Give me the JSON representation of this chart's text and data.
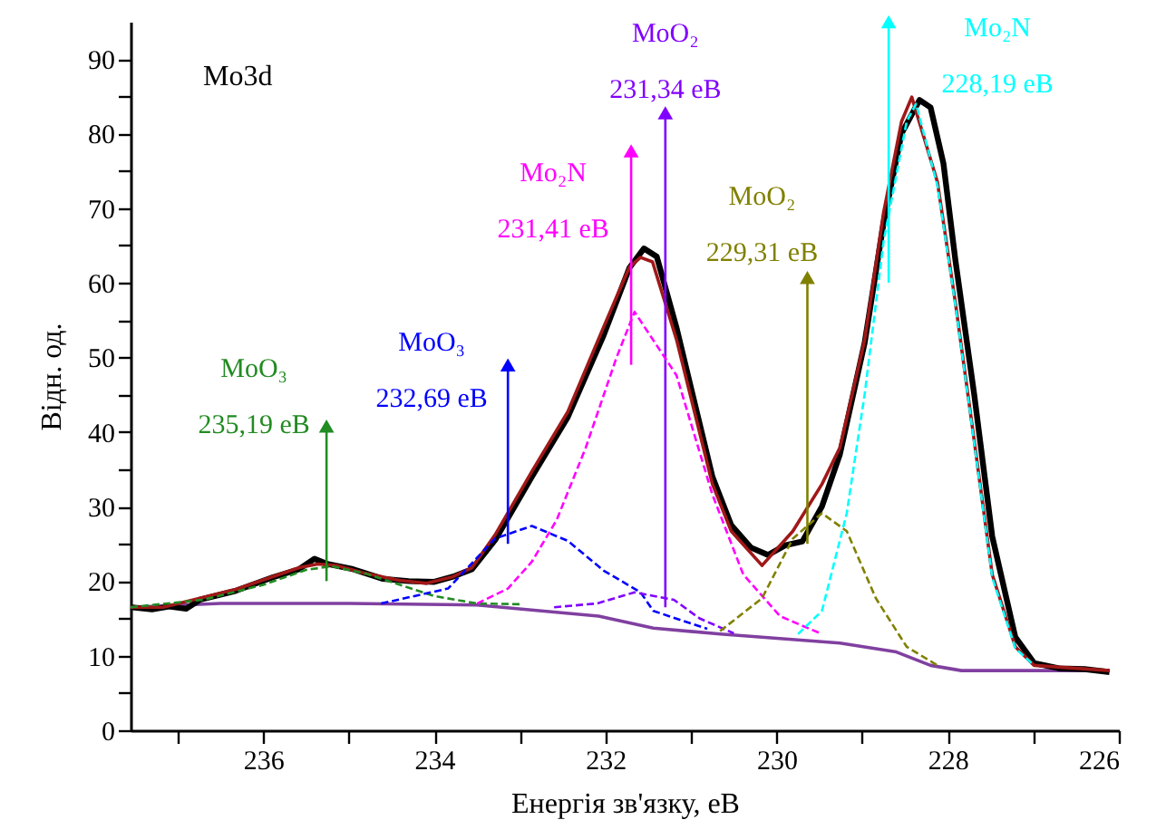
{
  "chart_data": {
    "type": "line",
    "xlabel": "Енергія  зв'язку, еВ",
    "ylabel": "Відн. од.",
    "xlim": [
      237.55,
      226
    ],
    "ylim": [
      0,
      95
    ],
    "xticks": [
      {
        "value": 237,
        "label": null
      },
      236,
      {
        "value": 235,
        "label": null
      },
      234,
      {
        "value": 233,
        "label": null
      },
      232,
      {
        "value": 231,
        "label": null
      },
      230,
      {
        "value": 229,
        "label": null
      },
      228,
      {
        "value": 227,
        "label": null
      },
      226
    ],
    "yticks": [
      0,
      {
        "value": 5,
        "label": null
      },
      10,
      {
        "value": 15,
        "label": null
      },
      20,
      {
        "value": 25,
        "label": null
      },
      30,
      {
        "value": 35,
        "label": null
      },
      40,
      {
        "value": 45,
        "label": null
      },
      50,
      {
        "value": 55,
        "label": null
      },
      60,
      {
        "value": 65,
        "label": null
      },
      70,
      {
        "value": 75,
        "label": null
      },
      80,
      {
        "value": 85,
        "label": null
      },
      90
    ],
    "grid": false,
    "annotations": [
      "Mo3d",
      {
        "text": "MoO₃\n235,19 еВ",
        "x": 235.26,
        "y": 40.8
      },
      {
        "text": "MoO₃\n232,69 еВ",
        "x": 233.14,
        "y": 49
      },
      {
        "text": "Mo₂N\n231,41 еВ",
        "x": 231.7,
        "y": 77.7
      },
      {
        "text": "MoO₂\n231,34 еВ",
        "x": 231.3,
        "y": 82.8
      },
      {
        "text": "MoO₂\n229,31 еВ",
        "x": 229.64,
        "y": 60.7
      },
      {
        "text": "Mo₂N\n228,19 еВ",
        "x": 228.69,
        "y": 95
      }
    ],
    "series": [
      {
        "color": "#8040a0",
        "line_style": "solid",
        "x": [
          237.55,
          236.5,
          235,
          233.5,
          232.08,
          231.44,
          230.66,
          229.26,
          228.6,
          228.2,
          227.84,
          226.11
        ],
        "values": [
          16.5,
          17,
          17,
          16.8,
          15.3,
          13.7,
          12.9,
          11.7,
          10.5,
          8.7,
          8.0,
          8.0
        ]
      },
      {
        "color": "#228b22",
        "line_style": "dashed",
        "x": [
          237.55,
          236.7,
          236,
          235.5,
          235.2,
          234.8,
          234.4,
          234,
          233.5,
          233
        ],
        "values": [
          16.5,
          17.5,
          19.5,
          21.5,
          22,
          21,
          19.5,
          18,
          17,
          16.9
        ]
      },
      {
        "color": "#0000ff",
        "line_style": "dashed",
        "x": [
          234.62,
          233.84,
          233.29,
          232.86,
          232.44,
          232.02,
          231.59,
          231.44,
          230.81
        ],
        "values": [
          17,
          19,
          25.7,
          27.4,
          25.4,
          21.4,
          18.5,
          16,
          13.6
        ]
      },
      {
        "color": "#ff00ff",
        "line_style": "dashed",
        "x": [
          233.5,
          233.14,
          232.86,
          232.57,
          232.23,
          231.87,
          231.66,
          231.17,
          230.75,
          230.39,
          229.96,
          229.47
        ],
        "values": [
          17,
          19,
          22.6,
          28.2,
          37.9,
          50,
          56.1,
          47.6,
          31.6,
          20.9,
          15.3,
          12.9
        ]
      },
      {
        "color": "#8000ff",
        "line_style": "dashed",
        "x": [
          232.6,
          232.1,
          231.66,
          231.2,
          230.9,
          230.5
        ],
        "values": [
          16.5,
          17,
          18.5,
          17.5,
          15,
          13
        ]
      },
      {
        "color": "#808000",
        "line_style": "dashed",
        "x": [
          230.66,
          230.17,
          229.81,
          229.47,
          229.18,
          228.84,
          228.48,
          228.12
        ],
        "values": [
          13.3,
          17.7,
          25.7,
          29.1,
          26.7,
          17.7,
          11.2,
          8.7
        ]
      },
      {
        "color": "#00ffff",
        "line_style": "dashed",
        "x": [
          229.75,
          229.47,
          229.18,
          228.97,
          228.75,
          228.48,
          228.37,
          228.12,
          227.91,
          227.69,
          227.48,
          227.21,
          226.99
        ],
        "values": [
          12.9,
          16,
          29.1,
          45.1,
          65.5,
          81.6,
          84,
          73,
          57,
          38.5,
          20.5,
          11,
          8.7
        ]
      },
      {
        "color": "#000000",
        "line_style": "solid",
        "x": [
          237.55,
          237.3,
          237.1,
          236.9,
          236.74,
          236.32,
          235.89,
          235.58,
          235.4,
          235.25,
          234.95,
          234.6,
          234.3,
          234.0,
          233.78,
          233.56,
          233.29,
          232.86,
          232.44,
          232.02,
          231.72,
          231.55,
          231.4,
          231.17,
          230.75,
          230.53,
          230.3,
          230.1,
          229.9,
          229.7,
          229.47,
          229.26,
          228.97,
          228.75,
          228.54,
          228.33,
          228.2,
          228.05,
          227.91,
          227.69,
          227.48,
          227.21,
          226.99,
          226.7,
          226.4,
          226.11
        ],
        "values": [
          16.5,
          16.2,
          16.6,
          16.3,
          17.5,
          18.7,
          20.5,
          21.6,
          23.0,
          22.3,
          21.6,
          20.3,
          20.0,
          19.9,
          20.6,
          21.6,
          25.5,
          34.0,
          42.0,
          53.0,
          62.0,
          64.6,
          63.5,
          54,
          34,
          27.5,
          24.5,
          23.5,
          24.8,
          25.3,
          30,
          37,
          52,
          68,
          80,
          84.5,
          83.5,
          76,
          63,
          45,
          26,
          12.5,
          9,
          8.3,
          8.2,
          7.8
        ]
      },
      {
        "color": "#a01818",
        "line_style": "solid",
        "x": [
          237.55,
          237.17,
          236.74,
          236.32,
          235.89,
          235.58,
          235.36,
          235.15,
          234.83,
          234.41,
          234.09,
          233.78,
          233.56,
          233.29,
          232.86,
          232.44,
          232.02,
          231.72,
          231.59,
          231.45,
          231.17,
          230.75,
          230.53,
          230.17,
          229.81,
          229.47,
          229.26,
          228.97,
          228.75,
          228.54,
          228.42,
          228.12,
          227.91,
          227.69,
          227.48,
          227.21,
          226.99,
          226.11
        ],
        "values": [
          16.5,
          16.5,
          17.7,
          18.9,
          20.6,
          21.8,
          22.3,
          22.1,
          21.1,
          20.1,
          19.7,
          20.6,
          21.8,
          26.2,
          34.7,
          42.7,
          54.1,
          62.1,
          63.4,
          62.8,
          52.4,
          33,
          26.7,
          22.1,
          26.7,
          33,
          37.9,
          52.4,
          69.4,
          81.6,
          84.9,
          73.5,
          57.3,
          38.8,
          20.9,
          11.2,
          8.7,
          8.0
        ]
      },
      {
        "color": "#228b22",
        "line_style": "solid",
        "marker": "triangle",
        "x": [
          235.26,
          235.26
        ],
        "values": [
          20,
          40.8
        ]
      },
      {
        "color": "#0000ff",
        "line_style": "solid",
        "marker": "triangle",
        "x": [
          233.14,
          233.14
        ],
        "values": [
          25,
          49
        ]
      },
      {
        "color": "#ff00ff",
        "line_style": "solid",
        "marker": "triangle",
        "x": [
          231.7,
          231.7
        ],
        "values": [
          49,
          77.7
        ]
      },
      {
        "color": "#8000ff",
        "line_style": "solid",
        "marker": "triangle",
        "x": [
          231.3,
          231.3
        ],
        "values": [
          16.5,
          82.8
        ]
      },
      {
        "color": "#808000",
        "line_style": "solid",
        "marker": "triangle",
        "x": [
          229.64,
          229.64
        ],
        "values": [
          25,
          60.7
        ]
      },
      {
        "color": "#00ffff",
        "line_style": "solid",
        "marker": "triangle",
        "x": [
          228.69,
          228.69
        ],
        "values": [
          60,
          95
        ]
      }
    ]
  }
}
